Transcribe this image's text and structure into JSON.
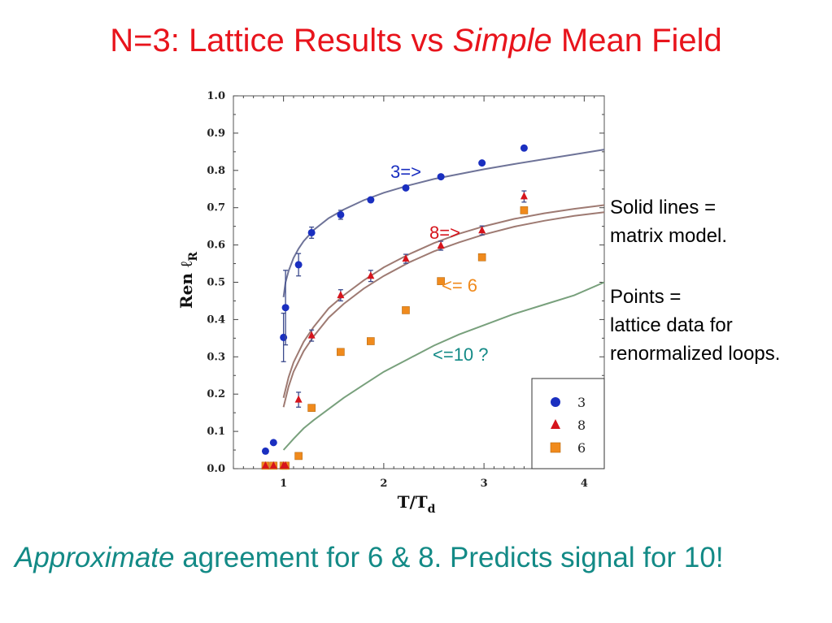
{
  "slide": {
    "title_part1": "N=3: Lattice Results vs ",
    "title_italic": "Simple",
    "title_part2": " Mean Field",
    "note_lines_1": [
      "Solid lines =",
      "matrix model."
    ],
    "note_lines_2": [
      "Points =",
      "lattice data for",
      "renormalized loops."
    ],
    "caption_italic": "Approximate",
    "caption_rest": " agreement for 6 & 8.  Predicts signal for 10!"
  },
  "colors": {
    "title": "#e8141c",
    "caption": "#138a86",
    "series_3": "#1a2fc0",
    "series_8": "#d6141c",
    "series_6": "#f08a1c",
    "curve_3": "#6e7398",
    "curve_8": "#9e7a72",
    "curve_10": "#78a07c"
  },
  "chart_data": {
    "type": "scatter",
    "xlabel_main": "T/T",
    "xlabel_sub": "d",
    "ylabel_main": "Ren ℓ",
    "ylabel_sub": "R",
    "xlim": [
      0.5,
      4.2
    ],
    "ylim": [
      0.0,
      1.0
    ],
    "xticks": [
      "1",
      "2",
      "3",
      "4"
    ],
    "yticks": [
      "0.0",
      "0.1",
      "0.2",
      "0.3",
      "0.4",
      "0.5",
      "0.6",
      "0.7",
      "0.8",
      "0.9",
      "1.0"
    ],
    "legend_position": "bottom-right",
    "series": [
      {
        "name": "3",
        "marker": "circle",
        "color": "#1a2fc0",
        "points": [
          {
            "x": 0.82,
            "y": 0.047
          },
          {
            "x": 0.9,
            "y": 0.07
          },
          {
            "x": 1.0,
            "y": 0.352,
            "err": 0.065
          },
          {
            "x": 1.02,
            "y": 0.432,
            "err": 0.1
          },
          {
            "x": 1.15,
            "y": 0.547,
            "err": 0.03
          },
          {
            "x": 1.28,
            "y": 0.633,
            "err": 0.015
          },
          {
            "x": 1.57,
            "y": 0.681,
            "err": 0.012
          },
          {
            "x": 1.87,
            "y": 0.721
          },
          {
            "x": 2.22,
            "y": 0.753
          },
          {
            "x": 2.57,
            "y": 0.783
          },
          {
            "x": 2.98,
            "y": 0.82
          },
          {
            "x": 3.4,
            "y": 0.86
          }
        ]
      },
      {
        "name": "8",
        "marker": "triangle",
        "color": "#d6141c",
        "points": [
          {
            "x": 0.82,
            "y": 0.008
          },
          {
            "x": 0.9,
            "y": 0.008
          },
          {
            "x": 1.0,
            "y": 0.008
          },
          {
            "x": 1.02,
            "y": 0.008
          },
          {
            "x": 1.15,
            "y": 0.185,
            "err": 0.02
          },
          {
            "x": 1.28,
            "y": 0.357,
            "err": 0.015
          },
          {
            "x": 1.57,
            "y": 0.465,
            "err": 0.015
          },
          {
            "x": 1.87,
            "y": 0.517,
            "err": 0.015
          },
          {
            "x": 2.22,
            "y": 0.563,
            "err": 0.012
          },
          {
            "x": 2.57,
            "y": 0.598,
            "err": 0.012
          },
          {
            "x": 2.98,
            "y": 0.639,
            "err": 0.012
          },
          {
            "x": 3.4,
            "y": 0.73,
            "err": 0.015
          }
        ]
      },
      {
        "name": "6",
        "marker": "square",
        "color": "#f08a1c",
        "points": [
          {
            "x": 0.82,
            "y": 0.008
          },
          {
            "x": 0.9,
            "y": 0.008
          },
          {
            "x": 1.0,
            "y": 0.008
          },
          {
            "x": 1.02,
            "y": 0.008
          },
          {
            "x": 1.15,
            "y": 0.034
          },
          {
            "x": 1.28,
            "y": 0.163
          },
          {
            "x": 1.57,
            "y": 0.313
          },
          {
            "x": 1.87,
            "y": 0.342
          },
          {
            "x": 2.22,
            "y": 0.425
          },
          {
            "x": 2.57,
            "y": 0.503
          },
          {
            "x": 2.98,
            "y": 0.567
          },
          {
            "x": 3.4,
            "y": 0.693
          }
        ]
      }
    ],
    "curves": [
      {
        "id": "curve-3",
        "color": "#6e7398",
        "x": [
          1.0,
          1.02,
          1.05,
          1.1,
          1.15,
          1.2,
          1.3,
          1.45,
          1.6,
          1.8,
          2.0,
          2.25,
          2.5,
          2.75,
          3.0,
          3.3,
          3.6,
          3.9,
          4.2
        ],
        "y": [
          0.46,
          0.5,
          0.53,
          0.565,
          0.59,
          0.61,
          0.64,
          0.672,
          0.695,
          0.72,
          0.74,
          0.76,
          0.777,
          0.79,
          0.803,
          0.817,
          0.83,
          0.843,
          0.856
        ]
      },
      {
        "id": "curve-8a",
        "color": "#9e7a72",
        "x": [
          1.0,
          1.05,
          1.1,
          1.2,
          1.3,
          1.45,
          1.6,
          1.8,
          2.0,
          2.25,
          2.5,
          2.75,
          3.0,
          3.3,
          3.6,
          3.9,
          4.2
        ],
        "y": [
          0.19,
          0.245,
          0.285,
          0.34,
          0.38,
          0.43,
          0.465,
          0.505,
          0.54,
          0.575,
          0.605,
          0.63,
          0.65,
          0.67,
          0.685,
          0.697,
          0.707
        ]
      },
      {
        "id": "curve-8b",
        "color": "#9e7a72",
        "x": [
          1.0,
          1.05,
          1.1,
          1.2,
          1.3,
          1.45,
          1.6,
          1.8,
          2.0,
          2.25,
          2.5,
          2.75,
          3.0,
          3.3,
          3.6,
          3.9,
          4.2
        ],
        "y": [
          0.165,
          0.22,
          0.26,
          0.315,
          0.355,
          0.405,
          0.442,
          0.483,
          0.517,
          0.553,
          0.583,
          0.607,
          0.628,
          0.649,
          0.665,
          0.678,
          0.688
        ]
      },
      {
        "id": "curve-10",
        "color": "#78a07c",
        "x": [
          1.0,
          1.1,
          1.2,
          1.3,
          1.45,
          1.6,
          1.8,
          2.0,
          2.25,
          2.5,
          2.75,
          3.0,
          3.3,
          3.6,
          3.9,
          4.2
        ],
        "y": [
          0.05,
          0.08,
          0.108,
          0.13,
          0.16,
          0.19,
          0.225,
          0.26,
          0.295,
          0.33,
          0.36,
          0.385,
          0.415,
          0.44,
          0.465,
          0.5
        ]
      }
    ],
    "annotations": [
      {
        "id": "annot-3",
        "text": "3=>",
        "color": "#1a2fc0"
      },
      {
        "id": "annot-8",
        "text": "8=>",
        "color": "#d6141c"
      },
      {
        "id": "annot-6",
        "text": "<= 6",
        "color": "#f08a1c"
      },
      {
        "id": "annot-10",
        "text": "<=10 ?",
        "color": "#138a86"
      }
    ]
  }
}
